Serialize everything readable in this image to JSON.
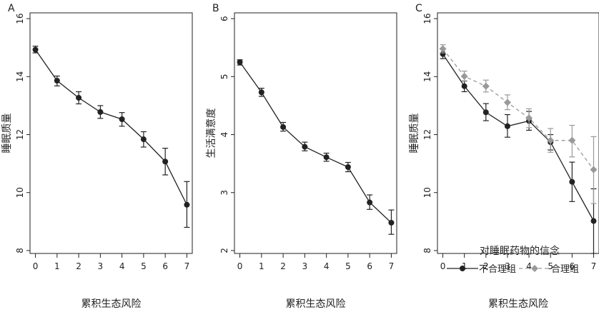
{
  "chart_data": [
    {
      "type": "line",
      "panel_label": "A",
      "xlabel": "累积生态风险",
      "ylabel": "睡眠质量",
      "x": [
        0,
        1,
        2,
        3,
        4,
        5,
        6,
        7
      ],
      "xlim": [
        -0.25,
        7.25
      ],
      "ylim": [
        7.9,
        16.2
      ],
      "yticks": [
        8,
        10,
        12,
        14,
        16
      ],
      "series": [
        {
          "values": [
            14.93,
            13.86,
            13.27,
            12.78,
            12.53,
            11.84,
            11.07,
            9.58
          ],
          "err_lower": [
            14.82,
            13.68,
            13.06,
            12.56,
            12.29,
            11.57,
            10.61,
            8.8
          ],
          "err_upper": [
            15.05,
            14.02,
            13.48,
            13.0,
            12.76,
            12.1,
            11.53,
            10.38
          ],
          "color": "#222222",
          "marker": "circle",
          "dash": "none"
        }
      ]
    },
    {
      "type": "line",
      "panel_label": "B",
      "xlabel": "累积生态风险",
      "ylabel": "生活满意度",
      "x": [
        0,
        1,
        2,
        3,
        4,
        5,
        6,
        7
      ],
      "xlim": [
        -0.25,
        7.25
      ],
      "ylim": [
        1.95,
        6.1
      ],
      "yticks": [
        2,
        3,
        4,
        5,
        6
      ],
      "series": [
        {
          "values": [
            5.25,
            4.73,
            4.13,
            3.79,
            3.61,
            3.44,
            2.83,
            2.48
          ],
          "err_lower": [
            5.2,
            4.66,
            4.06,
            3.72,
            3.54,
            3.36,
            2.71,
            2.28
          ],
          "err_upper": [
            5.29,
            4.8,
            4.21,
            3.87,
            3.68,
            3.52,
            2.96,
            2.7
          ],
          "color": "#222222",
          "marker": "circle",
          "dash": "none"
        }
      ]
    },
    {
      "type": "line",
      "panel_label": "C",
      "xlabel": "累积生态风险",
      "ylabel": "睡眠质量",
      "x": [
        0,
        1,
        2,
        3,
        4,
        5,
        6,
        7
      ],
      "xlim": [
        -0.25,
        7.25
      ],
      "ylim": [
        7.9,
        16.2
      ],
      "yticks": [
        8,
        10,
        12,
        14,
        16
      ],
      "legend": {
        "title": "对睡眠药物的信念",
        "position": "bottom-right"
      },
      "series": [
        {
          "name": "不合理组",
          "values": [
            14.78,
            13.67,
            12.77,
            12.29,
            12.47,
            11.74,
            10.37,
            9.02
          ],
          "err_lower": [
            14.62,
            13.48,
            12.48,
            11.91,
            12.15,
            11.47,
            9.69,
            7.9
          ],
          "err_upper": [
            14.95,
            13.85,
            13.07,
            12.69,
            12.8,
            12.0,
            11.05,
            10.13
          ],
          "color": "#222222",
          "marker": "circle",
          "dash": "none"
        },
        {
          "name": "合理组",
          "values": [
            14.96,
            14.01,
            13.67,
            13.11,
            12.57,
            11.8,
            11.8,
            10.79
          ],
          "err_lower": [
            14.82,
            13.84,
            13.47,
            12.86,
            12.24,
            11.39,
            11.23,
            9.62
          ],
          "err_upper": [
            15.1,
            14.19,
            13.88,
            13.37,
            12.89,
            12.21,
            12.32,
            11.93
          ],
          "color": "#999999",
          "marker": "diamond",
          "dash": "5,4"
        }
      ]
    }
  ]
}
